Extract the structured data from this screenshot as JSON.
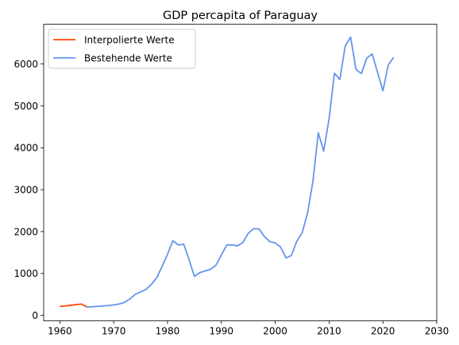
{
  "chart_data": {
    "type": "line",
    "title": "GDP percapita of Paraguay",
    "xlabel": "",
    "ylabel": "",
    "xlim": [
      1957,
      2030
    ],
    "ylim": [
      -130,
      6950
    ],
    "x_ticks": [
      1960,
      1970,
      1980,
      1990,
      2000,
      2010,
      2020,
      2030
    ],
    "y_ticks": [
      0,
      1000,
      2000,
      3000,
      4000,
      5000,
      6000
    ],
    "grid": false,
    "legend_position": "upper-left",
    "series": [
      {
        "name": "Interpolierte Werte",
        "color": "#ff4500",
        "x": [
          1960,
          1961,
          1962,
          1963,
          1964,
          1965
        ],
        "y": [
          215,
          225,
          240,
          255,
          270,
          200
        ]
      },
      {
        "name": "Bestehende Werte",
        "color": "#6495ed",
        "x": [
          1965,
          1966,
          1967,
          1968,
          1969,
          1970,
          1971,
          1972,
          1973,
          1974,
          1975,
          1976,
          1977,
          1978,
          1979,
          1980,
          1981,
          1982,
          1983,
          1984,
          1985,
          1986,
          1987,
          1988,
          1989,
          1990,
          1991,
          1992,
          1993,
          1994,
          1995,
          1996,
          1997,
          1998,
          1999,
          2000,
          2001,
          2002,
          2003,
          2004,
          2005,
          2006,
          2007,
          2008,
          2009,
          2010,
          2011,
          2012,
          2013,
          2014,
          2015,
          2016,
          2017,
          2018,
          2019,
          2020,
          2021,
          2022
        ],
        "y": [
          200,
          205,
          215,
          225,
          235,
          250,
          270,
          310,
          390,
          500,
          560,
          620,
          740,
          900,
          1170,
          1460,
          1780,
          1680,
          1700,
          1330,
          930,
          1020,
          1060,
          1100,
          1200,
          1440,
          1680,
          1680,
          1660,
          1740,
          1960,
          2070,
          2060,
          1880,
          1760,
          1730,
          1630,
          1370,
          1430,
          1770,
          1970,
          2440,
          3200,
          4360,
          3920,
          4690,
          5780,
          5630,
          6430,
          6640,
          5870,
          5770,
          6140,
          6240,
          5800,
          5360,
          5980,
          6160
        ]
      }
    ]
  }
}
